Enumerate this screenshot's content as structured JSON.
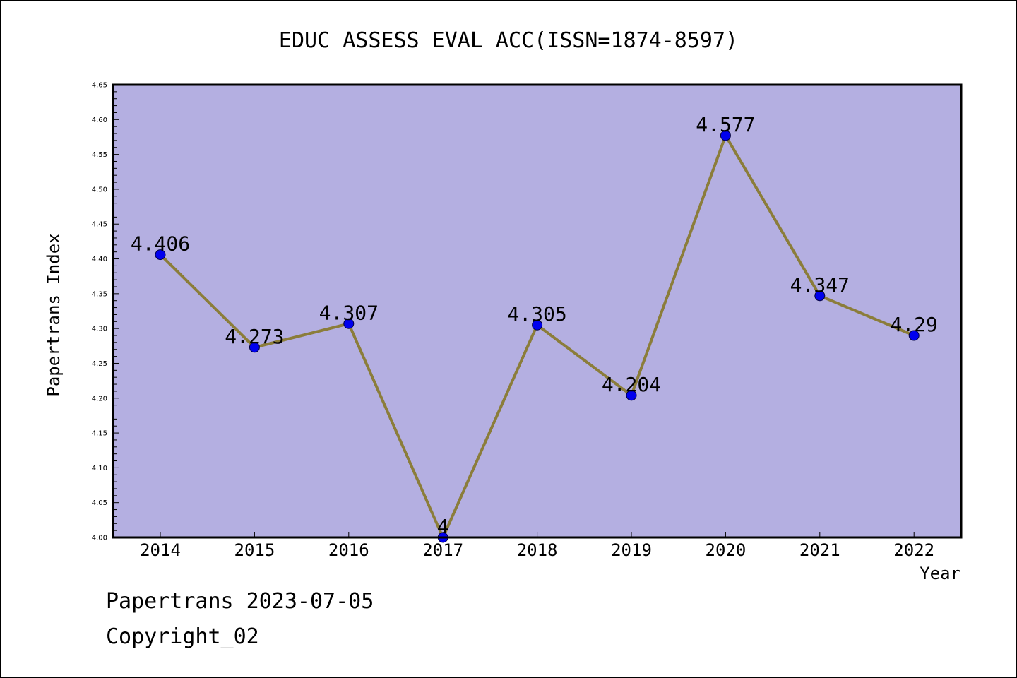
{
  "chart_data": {
    "type": "line",
    "title": "EDUC ASSESS EVAL ACC(ISSN=1874-8597)",
    "xlabel": "Year",
    "ylabel": "Papertrans Index",
    "categories": [
      "2014",
      "2015",
      "2016",
      "2017",
      "2018",
      "2019",
      "2020",
      "2021",
      "2022"
    ],
    "values": [
      4.406,
      4.273,
      4.307,
      4.0,
      4.305,
      4.204,
      4.577,
      4.347,
      4.29
    ],
    "data_labels": [
      "4.406",
      "4.273",
      "4.307",
      "4",
      "4.305",
      "4.204",
      "4.577",
      "4.347",
      "4.29"
    ],
    "ylim": [
      4.0,
      4.65
    ],
    "yticks": [
      "4.00",
      "4.05",
      "4.10",
      "4.15",
      "4.20",
      "4.25",
      "4.30",
      "4.35",
      "4.40",
      "4.45",
      "4.50",
      "4.55",
      "4.60",
      "4.65"
    ],
    "grid": false,
    "colors": {
      "plot_background": "#b4afe1",
      "line": "#8b7d3a",
      "marker": "#0000ee"
    }
  },
  "footer": {
    "line1": "Papertrans 2023-07-05",
    "line2": "Copyright_02"
  }
}
